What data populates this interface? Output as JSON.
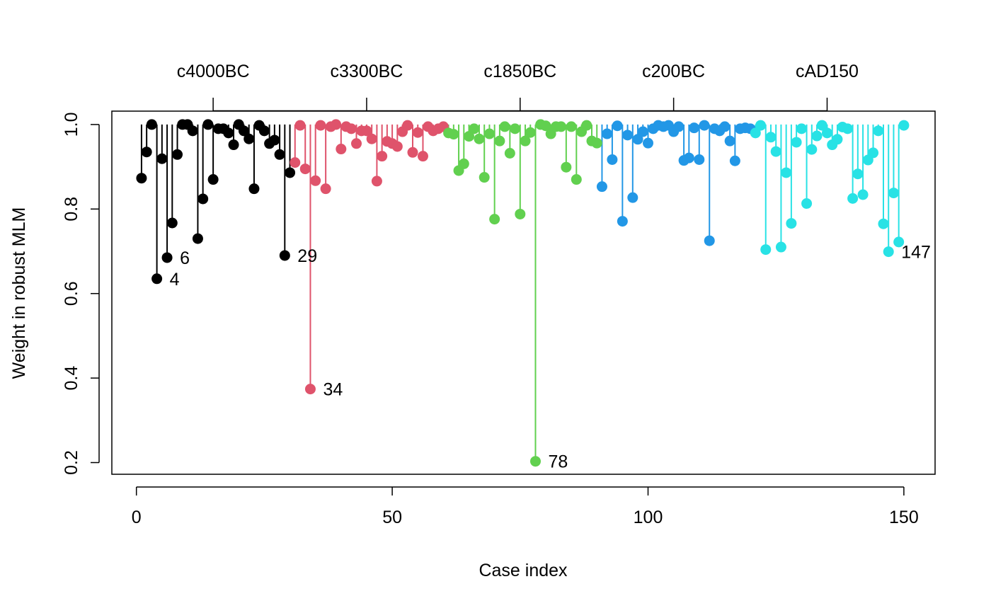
{
  "chart_data": {
    "type": "scatter",
    "xlabel": "Case index",
    "ylabel": "Weight in robust MLM",
    "xlim": [
      0,
      150
    ],
    "ylim": [
      0.2,
      1.0
    ],
    "x_ticks": [
      "0",
      "50",
      "100",
      "150"
    ],
    "y_ticks": [
      "0.2",
      "0.4",
      "0.6",
      "0.8",
      "1.0"
    ],
    "top_axis": {
      "labels": [
        "c4000BC",
        "c3300BC",
        "c1850BC",
        "c200BC",
        "cAD150"
      ],
      "positions": [
        15,
        45,
        75,
        105,
        135
      ]
    },
    "baseline": 1.0,
    "colors": [
      "#000000",
      "#DF536B",
      "#61D04F",
      "#2297E6",
      "#28E2E5"
    ],
    "series": [
      {
        "values": [
          0.873,
          0.935,
          1.0,
          0.635,
          0.919,
          0.685,
          0.767,
          0.929,
          1.0,
          1.0,
          0.985,
          0.73,
          0.824,
          1.0,
          0.87,
          0.99,
          0.99,
          0.98,
          0.952,
          1.0,
          0.985,
          0.966,
          0.848,
          0.998,
          0.985,
          0.955,
          0.963,
          0.929,
          0.69,
          0.886
        ]
      },
      {
        "values": [
          0.91,
          0.998,
          0.895,
          0.374,
          0.867,
          0.998,
          0.848,
          0.995,
          1.0,
          0.942,
          0.995,
          0.99,
          0.955,
          0.985,
          0.985,
          0.966,
          0.866,
          0.925,
          0.96,
          0.955,
          0.948,
          0.983,
          0.998,
          0.934,
          0.981,
          0.925,
          0.995,
          0.985,
          0.99,
          0.995
        ]
      },
      {
        "values": [
          0.98,
          0.977,
          0.891,
          0.907,
          0.972,
          0.99,
          0.966,
          0.875,
          0.978,
          0.776,
          0.961,
          0.995,
          0.932,
          0.99,
          0.788,
          0.961,
          0.981,
          0.203,
          1.0,
          0.997,
          0.978,
          0.995,
          0.995,
          0.899,
          0.995,
          0.87,
          0.983,
          0.998,
          0.961,
          0.956
        ]
      },
      {
        "values": [
          0.853,
          0.978,
          0.917,
          0.997,
          0.771,
          0.975,
          0.827,
          0.965,
          0.983,
          0.956,
          0.99,
          0.998,
          0.995,
          0.998,
          0.983,
          0.995,
          0.915,
          0.921,
          0.992,
          0.917,
          0.998,
          0.725,
          0.99,
          0.985,
          0.995,
          0.961,
          0.914,
          0.99,
          0.992,
          0.99
        ]
      },
      {
        "values": [
          0.98,
          0.998,
          0.704,
          0.97,
          0.936,
          0.71,
          0.886,
          0.766,
          0.958,
          0.99,
          0.813,
          0.941,
          0.973,
          0.998,
          0.98,
          0.952,
          0.965,
          0.994,
          0.99,
          0.825,
          0.883,
          0.834,
          0.916,
          0.933,
          0.985,
          0.765,
          0.699,
          0.838,
          0.722,
          0.998
        ]
      }
    ],
    "annotations": [
      {
        "index": 4,
        "value": 0.635,
        "label": "4"
      },
      {
        "index": 6,
        "value": 0.685,
        "label": "6"
      },
      {
        "index": 29,
        "value": 0.69,
        "label": "29"
      },
      {
        "index": 34,
        "value": 0.374,
        "label": "34"
      },
      {
        "index": 78,
        "value": 0.203,
        "label": "78"
      },
      {
        "index": 147,
        "value": 0.699,
        "label": "147"
      }
    ]
  }
}
